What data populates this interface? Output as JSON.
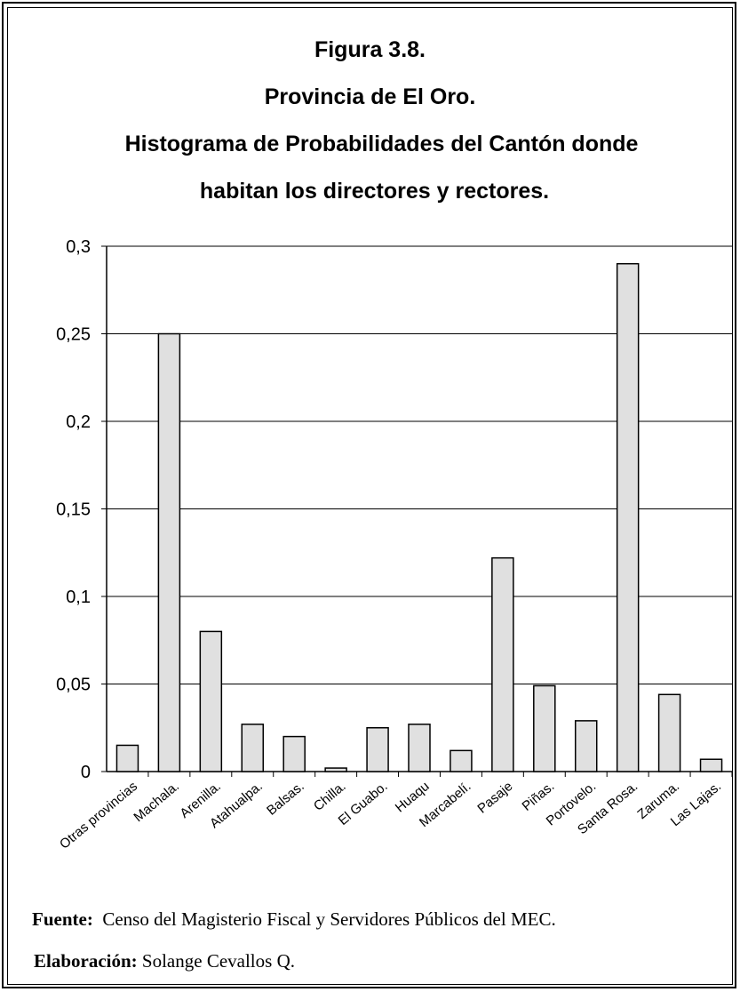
{
  "chart_data": {
    "type": "bar",
    "title_lines": [
      "Figura 3.8.",
      "Provincia de El Oro.",
      "Histograma de Probabilidades del Cantón donde",
      "habitan los directores y rectores."
    ],
    "categories": [
      "Otras provincias",
      "Machala.",
      "Arenilla.",
      "Atahualpa.",
      "Balsas.",
      "Chilla.",
      "El Guabo.",
      "Huaqu",
      "Marcabelí.",
      "Pasaje",
      "Piñas.",
      "Portovelo.",
      "Santa Rosa.",
      "Zaruma.",
      "Las Lajas."
    ],
    "values": [
      0.015,
      0.25,
      0.08,
      0.027,
      0.02,
      0.002,
      0.025,
      0.027,
      0.012,
      0.122,
      0.049,
      0.029,
      0.29,
      0.044,
      0.007
    ],
    "ylim": [
      0,
      0.3
    ],
    "yticks": [
      "0",
      "0,05",
      "0,1",
      "0,15",
      "0,2",
      "0,25",
      "0,3"
    ],
    "grid": true,
    "bar_color": "#e0e0e0"
  },
  "footer": {
    "fuente_label": "Fuente:",
    "fuente_text": "Censo del Magisterio Fiscal y Servidores Públicos del MEC.",
    "elaboracion_label": "Elaboración:",
    "elaboracion_text": "Solange Cevallos Q."
  }
}
